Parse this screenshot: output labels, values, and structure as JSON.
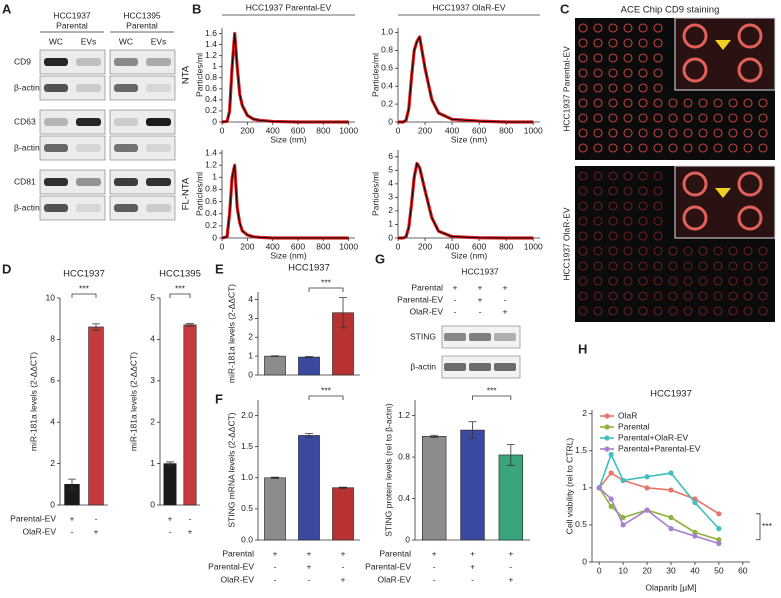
{
  "panel_labels": [
    "A",
    "B",
    "C",
    "D",
    "E",
    "F",
    "G",
    "H"
  ],
  "blot_a": {
    "groups": [
      {
        "title": [
          "HCC1937",
          "Parental"
        ],
        "lanes": [
          "WC",
          "EVs"
        ]
      },
      {
        "title": [
          "HCC1395",
          "Parental"
        ],
        "lanes": [
          "WC",
          "EVs"
        ]
      }
    ],
    "rows": [
      "CD9",
      "β-actin",
      "CD63",
      "β-actin",
      "CD81",
      "β-actin"
    ]
  },
  "panel_c": {
    "title": "ACE Chip CD9 staining",
    "rows": [
      "HCC1937 Parental-EV",
      "HCC1937 OlaR-EV"
    ]
  },
  "blot_g": {
    "title": "HCC1937",
    "conditions": [
      {
        "name": "Parental",
        "marks": [
          "+",
          "+",
          "+"
        ]
      },
      {
        "name": "Parental-EV",
        "marks": [
          "-",
          "+",
          "-"
        ]
      },
      {
        "name": "OlaR-EV",
        "marks": [
          "-",
          "-",
          "+"
        ]
      }
    ],
    "rows": [
      "STING",
      "β-actin"
    ]
  },
  "chart_data": [
    {
      "type": "line",
      "title": "HCC1937 Parental-EV",
      "row_label": "NTA",
      "x_label": "Size (nm)",
      "y_label": "Particles/ml",
      "x": [
        0,
        40,
        60,
        80,
        100,
        120,
        140,
        160,
        200,
        250,
        300,
        400,
        600,
        800,
        1000
      ],
      "series": [
        {
          "color": "#000000",
          "values": [
            0,
            0.01,
            0.2,
            1.0,
            1.6,
            1.0,
            0.5,
            0.3,
            0.12,
            0.05,
            0.03,
            0.01,
            0,
            0,
            0
          ]
        }
      ],
      "band_color": "#e02020",
      "xlim": [
        0,
        1050
      ],
      "xticks": [
        0,
        200,
        400,
        600,
        800,
        1000
      ],
      "ylim": [
        0,
        1.7
      ],
      "yticks": [
        0,
        0.2,
        0.4,
        0.6,
        0.8,
        1,
        1.2,
        1.4,
        1.6
      ]
    },
    {
      "type": "line",
      "title": "HCC1937 OlaR-EV",
      "x_label": "Size (nm)",
      "y_label": "Particles/ml",
      "x": [
        0,
        40,
        60,
        80,
        100,
        120,
        140,
        160,
        200,
        250,
        300,
        400,
        600,
        800,
        1000
      ],
      "series": [
        {
          "color": "#000000",
          "values": [
            0,
            0,
            0.02,
            0.15,
            0.5,
            0.8,
            0.9,
            0.95,
            0.6,
            0.25,
            0.1,
            0.03,
            0.01,
            0,
            0
          ]
        }
      ],
      "band_color": "#e02020",
      "xlim": [
        0,
        1050
      ],
      "xticks": [
        0,
        200,
        400,
        600,
        800,
        1000
      ],
      "ylim": [
        0,
        1.05
      ],
      "yticks": [
        0,
        0.2,
        0.4,
        0.6,
        0.8,
        {
          "value": 1,
          "label": "1.0"
        }
      ]
    },
    {
      "type": "line",
      "row_label": "FL-NTA",
      "x_label": "Size (nm)",
      "y_label": "Particles/ml",
      "x": [
        0,
        40,
        60,
        80,
        100,
        120,
        140,
        160,
        200,
        250,
        300,
        400,
        600,
        800,
        1000
      ],
      "series": [
        {
          "color": "#000000",
          "values": [
            0,
            0.02,
            0.4,
            1.0,
            1.2,
            0.5,
            0.25,
            0.12,
            0.05,
            0.02,
            0.01,
            0,
            0,
            0,
            0
          ]
        }
      ],
      "band_color": "#e02020",
      "xlim": [
        0,
        1050
      ],
      "xticks": [
        0,
        200,
        400,
        600,
        800,
        1000
      ],
      "ylim": [
        0,
        1.45
      ],
      "yticks": [
        0,
        0.2,
        0.4,
        0.6,
        0.8,
        1,
        1.2,
        1.4
      ]
    },
    {
      "type": "line",
      "x_label": "Size (nm)",
      "y_label": "Particles/ml",
      "x": [
        0,
        40,
        60,
        80,
        100,
        120,
        140,
        160,
        200,
        250,
        300,
        400,
        600,
        800,
        1000
      ],
      "series": [
        {
          "color": "#000000",
          "values": [
            0,
            0,
            0.1,
            0.8,
            2.5,
            4.5,
            5.5,
            5.2,
            3.5,
            1.5,
            0.5,
            0.1,
            0.02,
            0,
            0
          ]
        }
      ],
      "band_color": "#e02020",
      "xlim": [
        0,
        1050
      ],
      "xticks": [
        0,
        200,
        400,
        600,
        800,
        1000
      ],
      "ylim": [
        0,
        6.5
      ],
      "yticks": [
        0,
        1,
        2,
        3,
        4,
        5,
        6
      ]
    },
    {
      "type": "bar",
      "title": "HCC1937",
      "y_label": "miR-181a levels (2-ΔΔCT)",
      "values": [
        1.0,
        8.6
      ],
      "errors": [
        0.25,
        0.15
      ],
      "colors": [
        "#1a1a1a",
        "#c43c3c"
      ],
      "ylim": [
        0,
        10
      ],
      "yticks": [
        0,
        2,
        4,
        6,
        8,
        10
      ],
      "annotation": "***",
      "conditions": [
        {
          "name": "Parental-EV",
          "marks": [
            "+",
            "-"
          ]
        },
        {
          "name": "OlaR-EV",
          "marks": [
            "-",
            "+"
          ]
        }
      ]
    },
    {
      "type": "bar",
      "title": "HCC1395",
      "y_label": "miR-181a levels (2-ΔΔCT)",
      "values": [
        1.0,
        4.35
      ],
      "errors": [
        0.04,
        0.03
      ],
      "colors": [
        "#1a1a1a",
        "#c43c3c"
      ],
      "ylim": [
        0,
        5
      ],
      "yticks": [
        0,
        1,
        2,
        3,
        4,
        5
      ],
      "annotation": "***",
      "conditions": [
        {
          "marks": [
            "+",
            "-"
          ]
        },
        {
          "marks": [
            "-",
            "+"
          ]
        }
      ]
    },
    {
      "type": "bar",
      "title": "HCC1937",
      "y_label": "miR-181a levels (2-ΔΔCT)",
      "values": [
        1.0,
        0.95,
        3.3
      ],
      "errors": [
        0.02,
        0.03,
        0.8
      ],
      "colors": [
        "#8c8c8c",
        "#3b4aa0",
        "#b83232"
      ],
      "ylim": [
        0,
        4.4
      ],
      "yticks": [
        0,
        1,
        2,
        3,
        4
      ],
      "annotation": "***"
    },
    {
      "type": "bar",
      "y_label": "STING mRNA levels (2-ΔΔCT)",
      "values": [
        1.0,
        1.68,
        0.84
      ],
      "errors": [
        0.01,
        0.03,
        0.01
      ],
      "colors": [
        "#8c8c8c",
        "#3b4aa0",
        "#b83232"
      ],
      "ylim": [
        0,
        2.25
      ],
      "yticks": [
        {
          "value": 0,
          "label": "0.0"
        },
        0.5,
        {
          "value": 1,
          "label": "1.0"
        },
        1.5,
        {
          "value": 2,
          "label": "2.0"
        }
      ],
      "annotation": "***",
      "conditions": [
        {
          "name": "Parental",
          "marks": [
            "+",
            "+",
            "+"
          ]
        },
        {
          "name": "Parental-EV",
          "marks": [
            "-",
            "+",
            "-"
          ]
        },
        {
          "name": "OlaR-EV",
          "marks": [
            "-",
            "-",
            "+"
          ]
        }
      ]
    },
    {
      "type": "bar",
      "y_label": "STING protein levels (rel to β-actin)",
      "values": [
        1.0,
        1.06,
        0.82
      ],
      "errors": [
        0.01,
        0.08,
        0.1
      ],
      "colors": [
        "#8c8c8c",
        "#3b4aa0",
        "#3aa57a"
      ],
      "ylim": [
        0,
        1.35
      ],
      "yticks": [
        0,
        0.4,
        0.8,
        1.2
      ],
      "annotation": "***",
      "conditions": [
        {
          "name": "Parental",
          "marks": [
            "+",
            "+",
            "+"
          ]
        },
        {
          "name": "Parental-EV",
          "marks": [
            "-",
            "+",
            "-"
          ]
        },
        {
          "name": "OlaR-EV",
          "marks": [
            "-",
            "-",
            "+"
          ]
        }
      ]
    },
    {
      "type": "line",
      "title": "HCC1937",
      "x_label": "Olaparib [µM]",
      "y_label": "Cell viability (rel to CTRL)",
      "x": [
        0,
        5,
        10,
        20,
        30,
        40,
        50
      ],
      "markers": true,
      "legend": "upper-left",
      "annotation": "***",
      "series": [
        {
          "name": "OlaR",
          "color": "#e8756a",
          "values": [
            1.0,
            1.2,
            1.1,
            1.0,
            0.97,
            0.85,
            0.65
          ]
        },
        {
          "name": "Parental",
          "color": "#8db33a",
          "values": [
            1.0,
            0.75,
            0.6,
            0.7,
            0.6,
            0.4,
            0.3
          ]
        },
        {
          "name": "Parental+OlaR-EV",
          "color": "#3fbfbf",
          "values": [
            1.0,
            1.45,
            1.1,
            1.15,
            1.2,
            0.8,
            0.45
          ]
        },
        {
          "name": "Parental+Parental-EV",
          "color": "#a77fd1",
          "values": [
            1.0,
            0.85,
            0.5,
            0.7,
            0.45,
            0.35,
            0.25
          ]
        }
      ],
      "xlim": [
        -3,
        63
      ],
      "xticks": [
        0,
        10,
        20,
        30,
        40,
        50,
        60
      ],
      "ylim": [
        0,
        2.05
      ],
      "yticks": [
        0,
        0.5,
        1,
        1.5,
        2
      ]
    }
  ]
}
